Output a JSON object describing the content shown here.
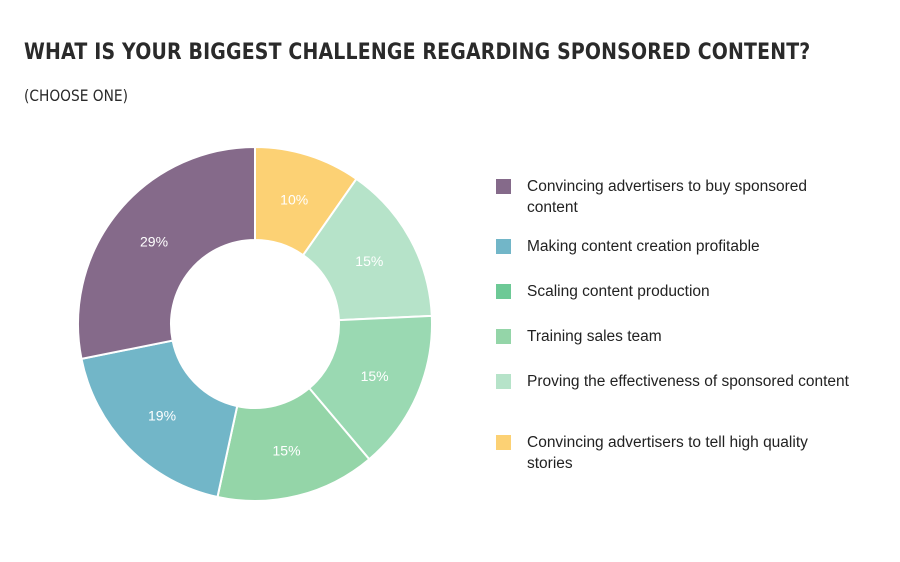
{
  "title": "WHAT IS YOUR BIGGEST CHALLENGE REGARDING SPONSORED CONTENT?",
  "subtitle": "(CHOOSE ONE)",
  "chart_data": {
    "type": "pie",
    "style": "donut",
    "title": "WHAT IS YOUR BIGGEST CHALLENGE REGARDING SPONSORED CONTENT?",
    "subtitle": "(CHOOSE ONE)",
    "legend_position": "right",
    "unit": "%",
    "slices": [
      {
        "label": "Convincing advertisers to buy sponsored content",
        "value": 29,
        "display": "29%",
        "color": "#856a8a"
      },
      {
        "label": "Making content creation profitable",
        "value": 19,
        "display": "19%",
        "color": "#72b6c8"
      },
      {
        "label": "Scaling content production",
        "value": 15,
        "display": "15%",
        "color": "#94d5a8"
      },
      {
        "label": "Training sales team",
        "value": 15,
        "display": "15%",
        "color": "#9ad9b2"
      },
      {
        "label": "Proving the effectiveness of sponsored content",
        "value": 15,
        "display": "15%",
        "color": "#b6e3c9"
      },
      {
        "label": "Convincing advertisers to tell high quality stories",
        "value": 10,
        "display": "10%",
        "color": "#fcd174"
      }
    ],
    "legend": [
      {
        "label": "Convincing advertisers to buy sponsored content",
        "color": "#856a8a"
      },
      {
        "label": "Making content creation profitable",
        "color": "#72b6c8"
      },
      {
        "label": "Scaling content production",
        "color": "#6dc996"
      },
      {
        "label": "Training sales team",
        "color": "#94d5a8"
      },
      {
        "label": "Proving the effectiveness of sponsored content",
        "color": "#b6e3c9"
      },
      {
        "label": "Convincing advertisers to tell high quality stories",
        "color": "#fcd174"
      }
    ]
  }
}
